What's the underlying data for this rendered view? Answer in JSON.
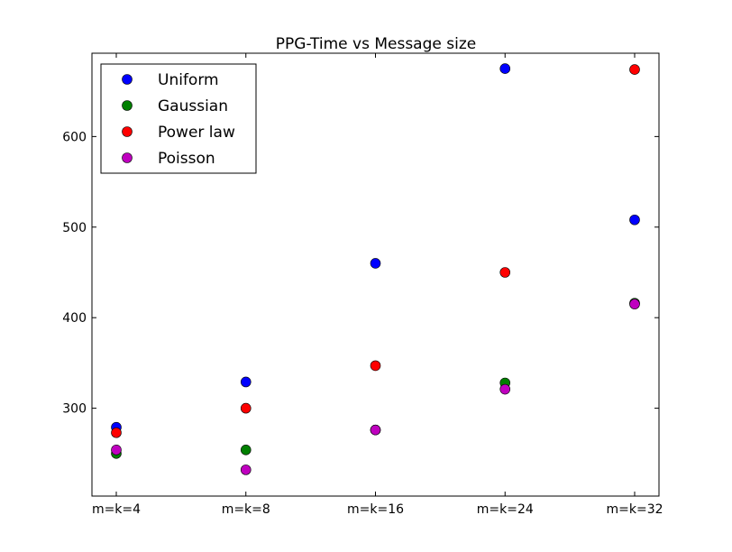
{
  "chart_data": {
    "type": "scatter",
    "title": "PPG-Time vs Message size",
    "xlabel": "",
    "ylabel": "",
    "categories": [
      "m=k=4",
      "m=k=8",
      "m=k=16",
      "m=k=24",
      "m=k=32"
    ],
    "ylim": [
      203,
      692
    ],
    "yticks": [
      300,
      400,
      500,
      600
    ],
    "grid": false,
    "legend_position": "top-left",
    "series": [
      {
        "name": "Uniform",
        "color": "#0000ff",
        "values": [
          279,
          329,
          460,
          675,
          508
        ]
      },
      {
        "name": "Gaussian",
        "color": "#008000",
        "values": [
          250,
          254,
          276,
          328,
          416
        ]
      },
      {
        "name": "Power law",
        "color": "#ff0000",
        "values": [
          273,
          300,
          347,
          450,
          674
        ]
      },
      {
        "name": "Poisson",
        "color": "#bf00bf",
        "values": [
          254,
          232,
          276,
          321,
          415
        ]
      }
    ]
  }
}
